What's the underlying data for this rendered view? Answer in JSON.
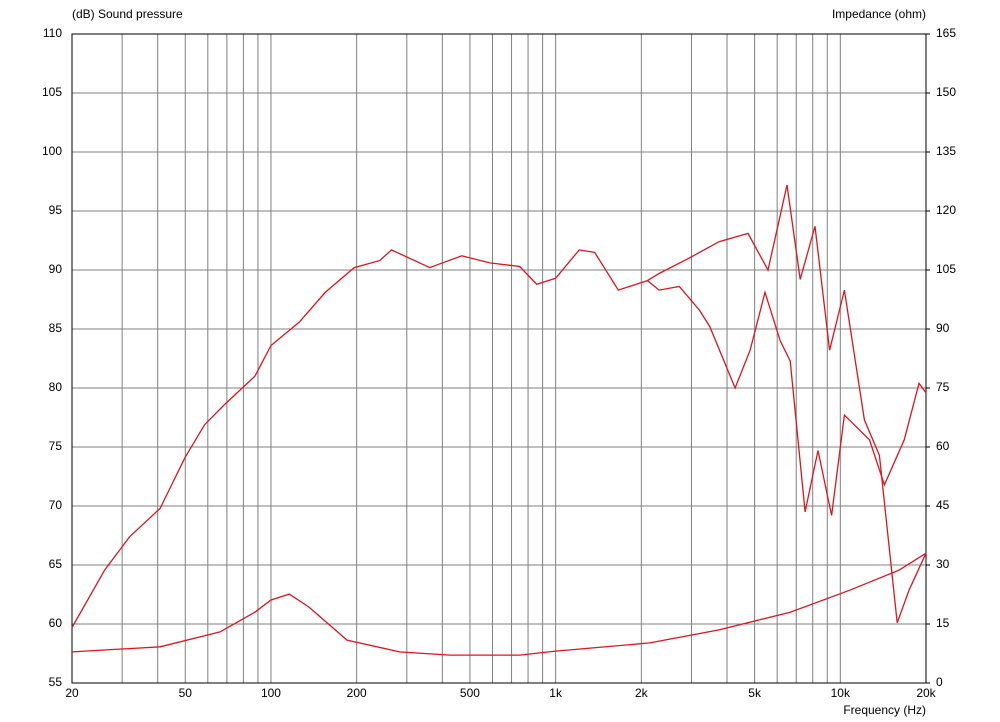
{
  "chart_data": {
    "type": "line",
    "y_label": "(dB)  Sound pressure",
    "y2_label": "Impedance  (ohm)",
    "x_label": "Frequency  (Hz)",
    "xscale": "log",
    "xlim": [
      20,
      20000
    ],
    "xticks": [
      20,
      50,
      100,
      200,
      500,
      {
        "value": 1000,
        "label": "1k"
      },
      {
        "value": 2000,
        "label": "2k"
      },
      {
        "value": 5000,
        "label": "5k"
      },
      {
        "value": 10000,
        "label": "10k"
      },
      {
        "value": 20000,
        "label": "20k"
      }
    ],
    "xminorticks": [
      30,
      40,
      60,
      70,
      80,
      90,
      300,
      400,
      600,
      700,
      800,
      900,
      3000,
      4000,
      6000,
      7000,
      8000,
      9000
    ],
    "ylim": [
      55,
      110
    ],
    "yticks": [
      55,
      60,
      65,
      70,
      75,
      80,
      85,
      90,
      95,
      100,
      105,
      110
    ],
    "y2lim": [
      0,
      165
    ],
    "y2ticks": [
      0,
      15,
      30,
      45,
      60,
      75,
      90,
      105,
      120,
      135,
      150,
      165
    ],
    "grid": true,
    "series": [
      {
        "color": "#e0141e",
        "x": [
          20,
          26.1,
          31.9,
          40.8,
          49.9,
          58.5,
          68.7,
          87.8,
          100,
          126,
          155,
          196,
          241,
          265,
          361,
          468,
          587,
          748,
          858,
          1000,
          1210,
          1370,
          1660,
          2100,
          2310,
          2720,
          3200,
          3480,
          4270,
          4820,
          5440,
          6150,
          6670,
          7520,
          8350,
          9320,
          10340,
          12660,
          14290,
          16760,
          18900,
          20000
        ],
        "values": [
          59.7,
          64.6,
          67.4,
          69.8,
          74.1,
          76.9,
          78.6,
          81.0,
          83.6,
          85.6,
          88.1,
          90.2,
          90.8,
          91.7,
          90.2,
          91.2,
          90.6,
          90.3,
          88.8,
          89.3,
          91.7,
          91.5,
          88.3,
          89.1,
          88.3,
          88.6,
          86.6,
          85.2,
          80.0,
          83.2,
          88.1,
          84.0,
          82.3,
          69.5,
          74.7,
          69.2,
          77.7,
          75.6,
          71.8,
          75.6,
          80.4,
          79.6
        ]
      },
      {
        "color": "#e0141e",
        "x": [
          2100,
          2310,
          2940,
          3750,
          4740,
          5570,
          6500,
          7230,
          8150,
          9170,
          10340,
          12150,
          13720,
          15840,
          17460,
          20000
        ],
        "values": [
          89.1,
          89.7,
          91.0,
          92.4,
          93.1,
          90.0,
          97.2,
          89.2,
          93.7,
          83.2,
          88.3,
          77.3,
          74.3,
          60.1,
          62.9,
          66.0
        ]
      },
      {
        "color": "#e0141e",
        "axis": "y2",
        "x": [
          20,
          40.8,
          66.2,
          87.8,
          100,
          116,
          136,
          185,
          283,
          425,
          748,
          1000,
          2140,
          3750,
          6670,
          10800,
          16100,
          20000
        ],
        "values": [
          7.9,
          9.2,
          13.0,
          18.0,
          21.1,
          22.6,
          19.3,
          10.9,
          7.9,
          7.1,
          7.1,
          8.1,
          10.2,
          13.5,
          18.0,
          23.6,
          28.7,
          33.0
        ]
      }
    ]
  }
}
